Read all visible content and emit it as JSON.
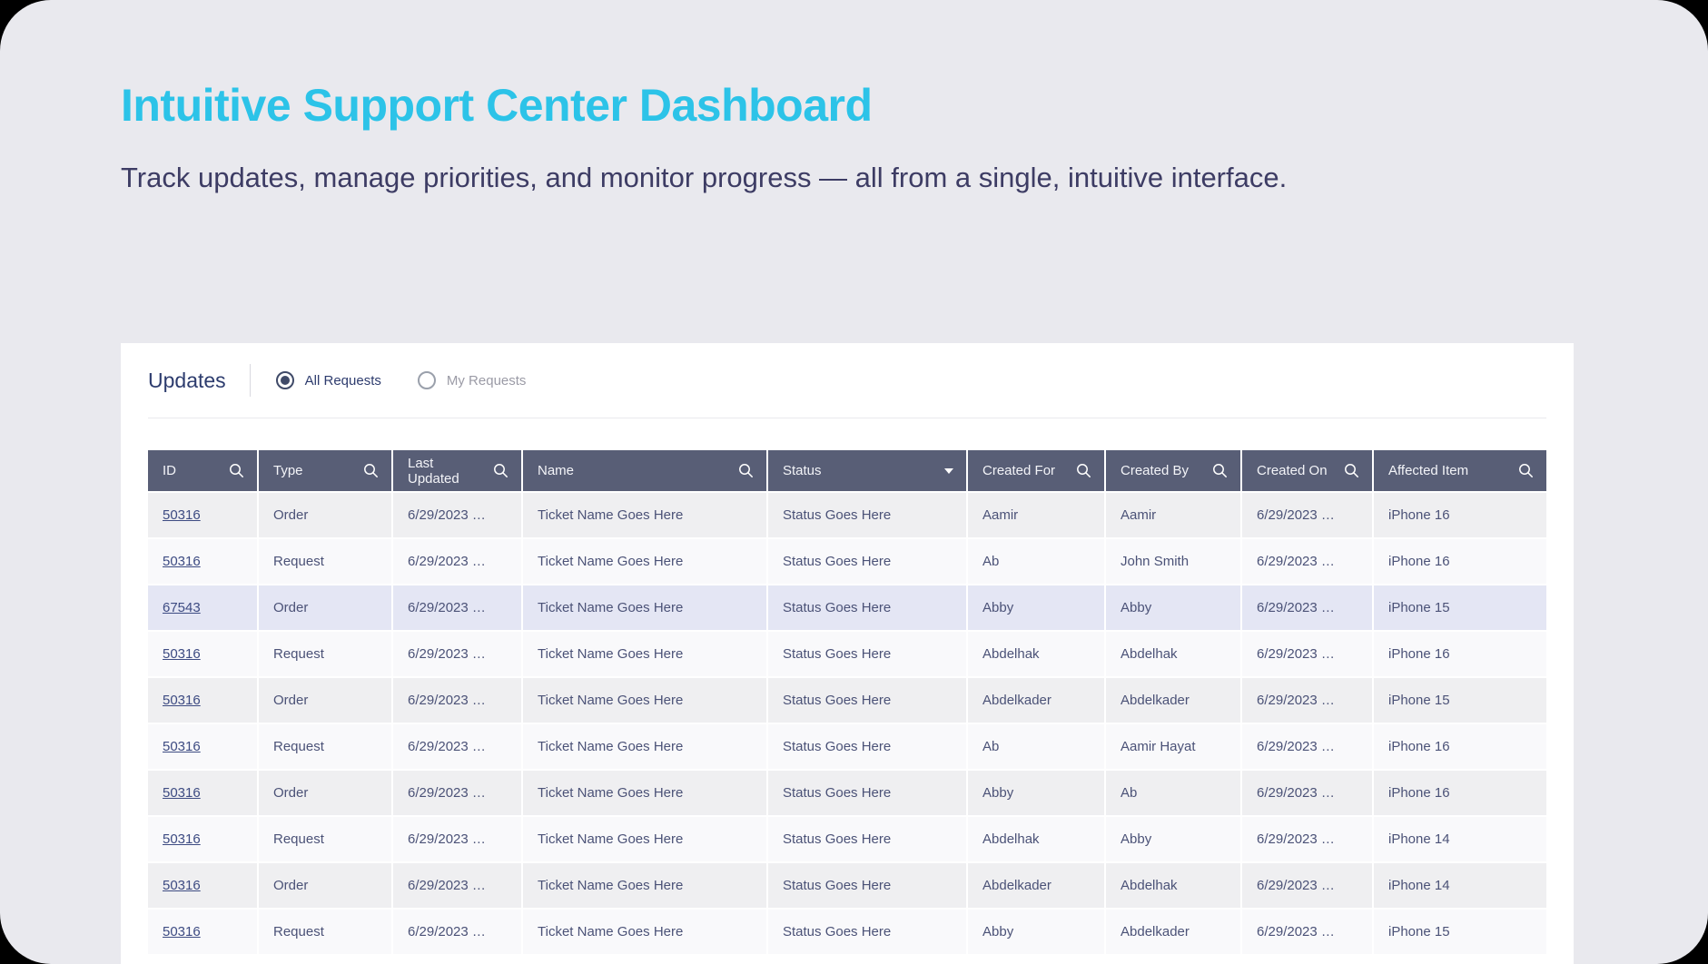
{
  "page": {
    "title": "Intuitive Support Center Dashboard",
    "subtitle": "Track updates, manage priorities, and monitor progress — all from a single, intuitive interface."
  },
  "panel": {
    "heading": "Updates",
    "filters": [
      {
        "label": "All Requests",
        "selected": true
      },
      {
        "label": "My Requests",
        "selected": false
      }
    ]
  },
  "table": {
    "columns": [
      {
        "key": "id",
        "label": "ID",
        "icon": "search-icon"
      },
      {
        "key": "type",
        "label": "Type",
        "icon": "search-icon"
      },
      {
        "key": "last-updated",
        "label": "Last Updated",
        "icon": "search-icon"
      },
      {
        "key": "name",
        "label": "Name",
        "icon": "search-icon"
      },
      {
        "key": "status",
        "label": "Status",
        "icon": "caret-down-icon"
      },
      {
        "key": "created-for",
        "label": "Created For",
        "icon": "search-icon"
      },
      {
        "key": "created-by",
        "label": "Created By",
        "icon": "search-icon"
      },
      {
        "key": "created-on",
        "label": "Created On",
        "icon": "search-icon"
      },
      {
        "key": "affected-item",
        "label": "Affected Item",
        "icon": "search-icon"
      }
    ],
    "highlighted_row": 2,
    "rows": [
      [
        "50316",
        "Order",
        "6/29/2023 …",
        "Ticket Name Goes Here",
        "Status Goes Here",
        "Aamir",
        "Aamir",
        "6/29/2023 …",
        "iPhone 16"
      ],
      [
        "50316",
        "Request",
        "6/29/2023 …",
        "Ticket Name Goes Here",
        "Status Goes Here",
        "Ab",
        "John Smith",
        "6/29/2023 …",
        "iPhone 16"
      ],
      [
        "67543",
        "Order",
        "6/29/2023 …",
        "Ticket Name Goes Here",
        "Status Goes Here",
        "Abby",
        "Abby",
        "6/29/2023 …",
        "iPhone 15"
      ],
      [
        "50316",
        "Request",
        "6/29/2023 …",
        "Ticket Name Goes Here",
        "Status Goes Here",
        "Abdelhak",
        "Abdelhak",
        "6/29/2023 …",
        "iPhone 16"
      ],
      [
        "50316",
        "Order",
        "6/29/2023 …",
        "Ticket Name Goes Here",
        "Status Goes Here",
        "Abdelkader",
        "Abdelkader",
        "6/29/2023 …",
        "iPhone 15"
      ],
      [
        "50316",
        "Request",
        "6/29/2023 …",
        "Ticket Name Goes Here",
        "Status Goes Here",
        "Ab",
        "Aamir Hayat",
        "6/29/2023 …",
        "iPhone 16"
      ],
      [
        "50316",
        "Order",
        "6/29/2023 …",
        "Ticket Name Goes Here",
        "Status Goes Here",
        "Abby",
        "Ab",
        "6/29/2023 …",
        "iPhone 16"
      ],
      [
        "50316",
        "Request",
        "6/29/2023 …",
        "Ticket Name Goes Here",
        "Status Goes Here",
        "Abdelhak",
        "Abby",
        "6/29/2023 …",
        "iPhone 14"
      ],
      [
        "50316",
        "Order",
        "6/29/2023 …",
        "Ticket Name Goes Here",
        "Status Goes Here",
        "Abdelkader",
        "Abdelhak",
        "6/29/2023 …",
        "iPhone 14"
      ],
      [
        "50316",
        "Request",
        "6/29/2023 …",
        "Ticket Name Goes Here",
        "Status Goes Here",
        "Abby",
        "Abdelkader",
        "6/29/2023 …",
        "iPhone 15"
      ]
    ]
  },
  "colors": {
    "accent": "#2cc3e8",
    "heading_text": "#2d3c6e",
    "table_header_bg": "#585e76",
    "row_stripe": "#efeff1",
    "row_plain": "#f9f9fb",
    "row_highlight": "#e4e6f4",
    "cell_text": "#4b5277",
    "link": "#3d4b82",
    "page_bg": "#e9e9ee"
  }
}
